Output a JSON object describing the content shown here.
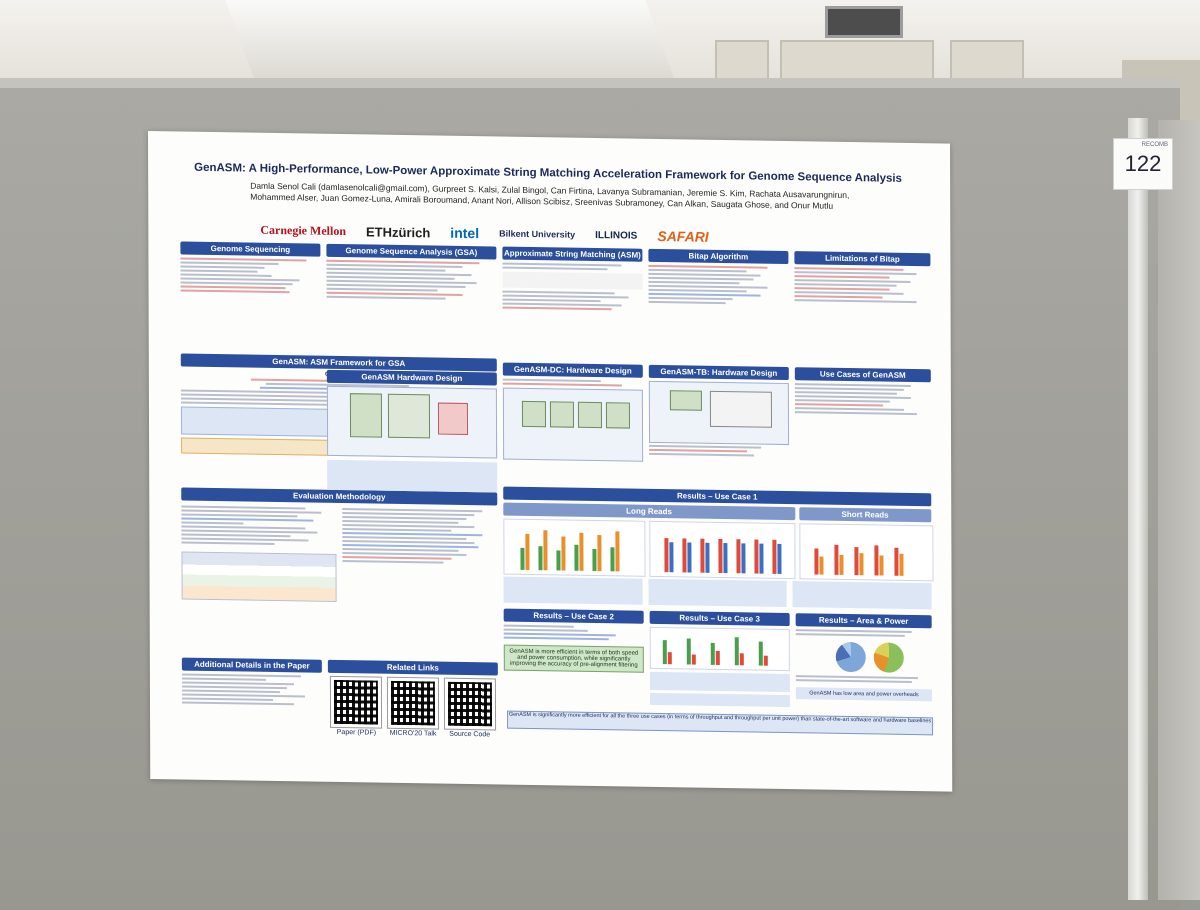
{
  "booth_number": "122",
  "booth_number_caption": "RECOMB",
  "poster": {
    "title": "GenASM: A High-Performance, Low-Power Approximate String Matching Acceleration Framework for Genome Sequence Analysis",
    "authors_line1": "Damla Senol Cali (damlasenolcali@gmail.com), Gurpreet S. Kalsi, Zulal Bingol, Can Firtina, Lavanya Subramanian, Jeremie S. Kim, Rachata Ausavarungnirun,",
    "authors_line2": "Mohammed Alser, Juan Gomez-Luna, Amirali Boroumand, Anant Nori, Allison Scibisz, Sreenivas Subramoney, Can Alkan, Saugata Ghose, and Onur Mutlu",
    "logos": [
      "Carnegie Mellon",
      "ETHzürich",
      "intel",
      "Bilkent University",
      "ILLINOIS",
      "SAFARI"
    ],
    "sections": {
      "genome_sequencing": "Genome Sequencing",
      "gsa": "Genome Sequence Analysis (GSA)",
      "asm": "Approximate String Matching (ASM)",
      "bitap": "Bitap Algorithm",
      "limitations": "Limitations of Bitap",
      "framework": "GenASM: ASM Framework for GSA",
      "hw_design": "GenASM Hardware Design",
      "dc_design": "GenASM-DC: Hardware Design",
      "tb_design": "GenASM-TB: Hardware Design",
      "use_cases": "Use Cases of GenASM",
      "results_uc1": "Results – Use Case 1",
      "long_reads": "Long Reads",
      "short_reads": "Short Reads",
      "evaluation": "Evaluation Methodology",
      "results_uc2": "Results – Use Case 2",
      "results_uc3": "Results – Use Case 3",
      "area_power": "Results – Area & Power",
      "additional": "Additional Details in the Paper",
      "related": "Related Links"
    },
    "framework_goal": "Our Goal:",
    "uc2_box": "GenASM is more efficient in terms of both speed and power consumption, while significantly improving the accuracy of pre-alignment filtering",
    "area_power_box": "GenASM has low area and power overheads",
    "summary": "GenASM is significantly more efficient for all the three use cases (in terms of throughput and throughput per unit power) than state-of-the-art software and hardware baselines",
    "qr_labels": [
      "Paper (PDF)",
      "MICRO'20 Talk",
      "Source Code"
    ]
  }
}
